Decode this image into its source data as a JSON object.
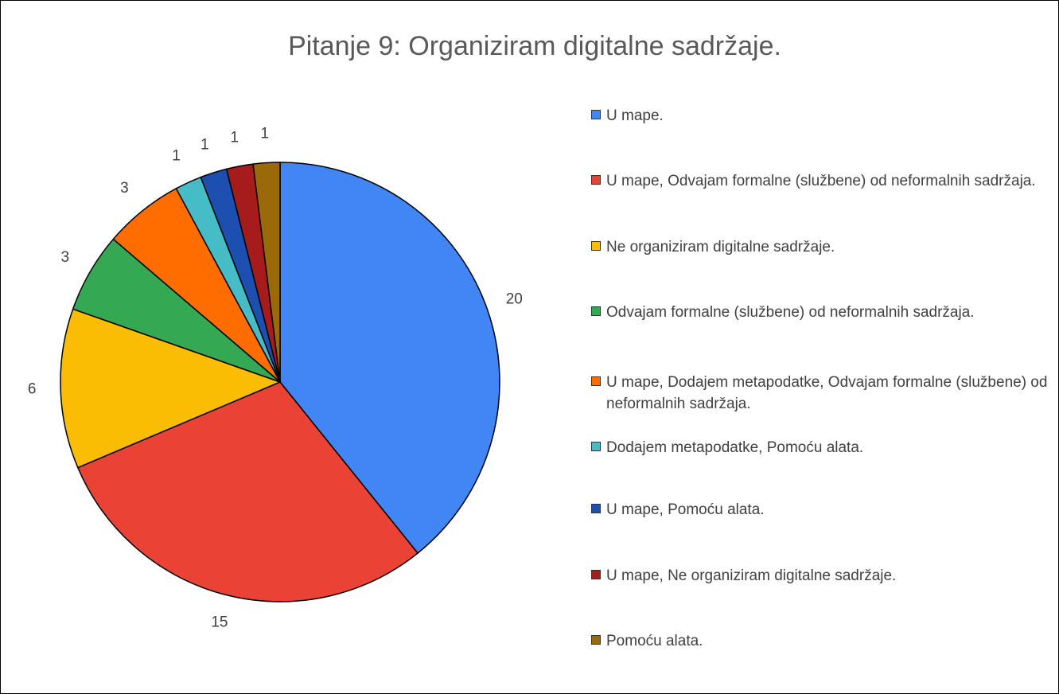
{
  "chart_data": {
    "type": "pie",
    "title": "Pitanje 9: Organiziram digitalne sadržaje.",
    "categories": [
      "U mape.",
      "U mape, Odvajam formalne (službene) od neformalnih sadržaja.",
      "Ne organiziram digitalne sadržaje.",
      "Odvajam formalne (službene) od neformalnih sadržaja.",
      "U mape, Dodajem metapodatke, Odvajam formalne (službene) od neformalnih sadržaja.",
      "Dodajem metapodatke, Pomoću alata.",
      "U mape, Pomoću alata.",
      "U mape, Ne organiziram digitalne sadržaje.",
      "Pomoću alata."
    ],
    "values": [
      20,
      15,
      6,
      3,
      3,
      1,
      1,
      1,
      1
    ],
    "colors": [
      "#4285f4",
      "#ea4335",
      "#fbbc04",
      "#34a853",
      "#ff6d01",
      "#46bdc6",
      "#1c4fb0",
      "#a61c1c",
      "#9a6a0a"
    ],
    "legend": "right"
  }
}
